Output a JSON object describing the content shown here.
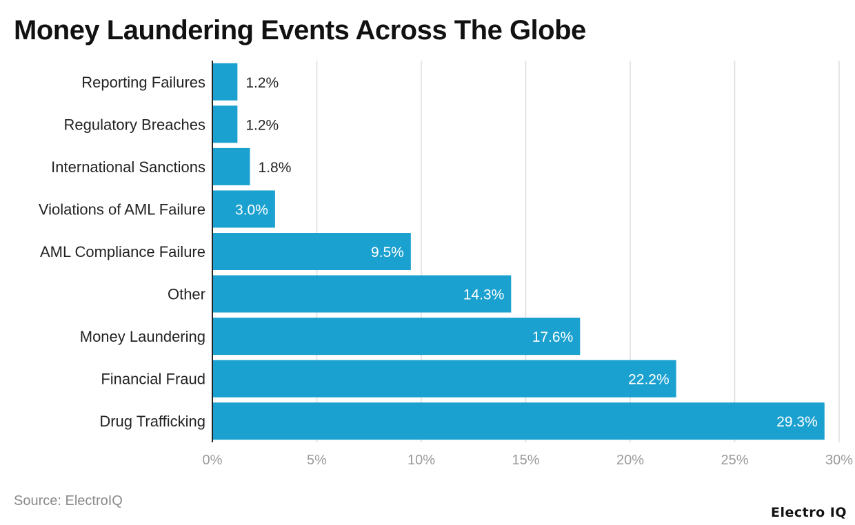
{
  "title": "Money Laundering Events Across The Globe",
  "source": "Source: ElectroIQ",
  "brand": "Electro IQ",
  "colors": {
    "bar": "#1ba1cf",
    "grid": "#dddddd",
    "axis": "#222222",
    "tick": "#999999"
  },
  "chart_data": {
    "type": "bar",
    "orientation": "horizontal",
    "categories": [
      "Reporting Failures",
      "Regulatory Breaches",
      "International Sanctions",
      "Violations of AML Failure",
      "AML Compliance Failure",
      "Other",
      "Money Laundering",
      "Financial Fraud",
      "Drug Trafficking"
    ],
    "values": [
      1.2,
      1.2,
      1.8,
      3.0,
      9.5,
      14.3,
      17.6,
      22.2,
      29.3
    ],
    "value_labels": [
      "1.2%",
      "1.2%",
      "1.8%",
      "3.0%",
      "9.5%",
      "14.3%",
      "17.6%",
      "22.2%",
      "29.3%"
    ],
    "xlim": [
      0,
      30
    ],
    "x_ticks": [
      0,
      5,
      10,
      15,
      20,
      25,
      30
    ],
    "x_tick_labels": [
      "0%",
      "5%",
      "10%",
      "15%",
      "20%",
      "25%",
      "30%"
    ],
    "grid": true,
    "xlabel": "",
    "ylabel": ""
  }
}
